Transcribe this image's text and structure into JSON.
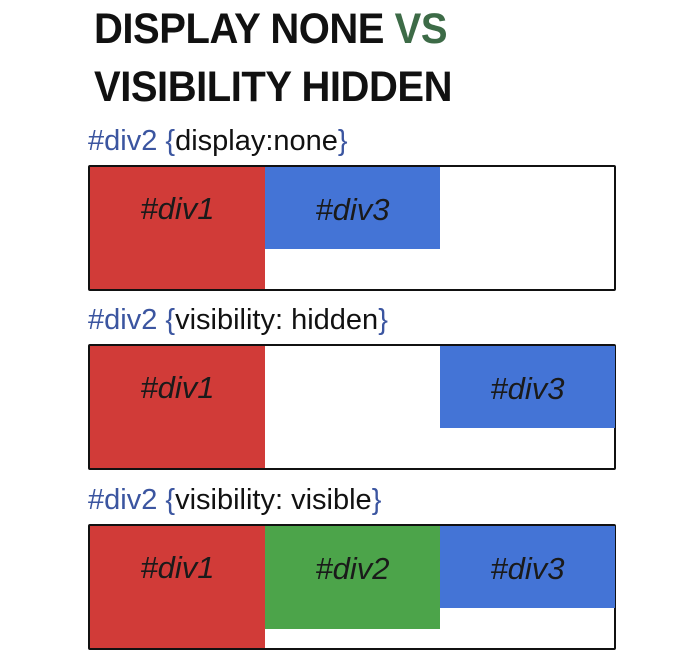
{
  "title": {
    "line1_main": "DISPLAY NONE ",
    "line1_vs": "VS",
    "line2": "VISIBILITY HIDDEN"
  },
  "colors": {
    "div1": "#d13b38",
    "div2": "#4ca44a",
    "div3": "#4474d6",
    "selector": "#3b55a0",
    "vs": "#3d6b47"
  },
  "examples": [
    {
      "selector": "#div2",
      "brace_open": "{",
      "declaration": "display:none",
      "brace_close": "}",
      "boxes": [
        "#div1",
        "#div3"
      ]
    },
    {
      "selector": "#div2",
      "brace_open": "{",
      "declaration": "visibility: hidden",
      "brace_close": "}",
      "boxes": [
        "#div1",
        "#div3"
      ]
    },
    {
      "selector": "#div2",
      "brace_open": "{",
      "declaration": "visibility: visible",
      "brace_close": "}",
      "boxes": [
        "#div1",
        "#div2",
        "#div3"
      ]
    }
  ]
}
